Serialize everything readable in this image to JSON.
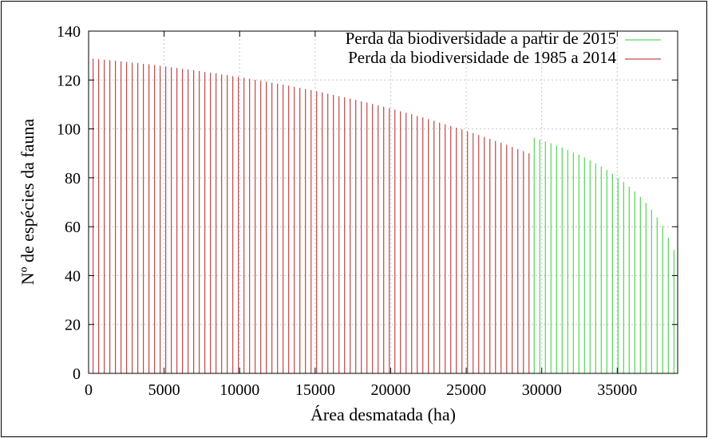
{
  "chart_data": {
    "type": "bar",
    "xlabel": "Área desmatada (ha)",
    "ylabel": "Nº de espécies da fauna",
    "xlim": [
      0,
      39000
    ],
    "ylim": [
      0,
      140
    ],
    "x_ticks": [
      "0",
      "5000",
      "10000",
      "15000",
      "20000",
      "25000",
      "30000",
      "35000"
    ],
    "y_ticks": [
      "0",
      "20",
      "40",
      "60",
      "80",
      "100",
      "120",
      "140"
    ],
    "grid": true,
    "legend_position": "top-right",
    "series": [
      {
        "name": "Perda da biodiversidade a partir de 2015",
        "color": "#33cc33",
        "points": [
          [
            29500,
            96.3
          ],
          [
            29870,
            95.6
          ],
          [
            30240,
            94.9
          ],
          [
            30610,
            94.1
          ],
          [
            30980,
            93.2
          ],
          [
            31350,
            92.4
          ],
          [
            31720,
            91.4
          ],
          [
            32090,
            90.4
          ],
          [
            32460,
            89.4
          ],
          [
            32830,
            88.3
          ],
          [
            33200,
            87.1
          ],
          [
            33570,
            85.9
          ],
          [
            33940,
            84.6
          ],
          [
            34310,
            83.2
          ],
          [
            34680,
            81.7
          ],
          [
            35050,
            80.0
          ],
          [
            35420,
            78.3
          ],
          [
            35790,
            76.4
          ],
          [
            36160,
            74.4
          ],
          [
            36530,
            72.2
          ],
          [
            36900,
            69.7
          ],
          [
            37270,
            67.0
          ],
          [
            37640,
            63.8
          ],
          [
            38010,
            60.2
          ],
          [
            38380,
            55.5
          ],
          [
            38750,
            50.5
          ]
        ]
      },
      {
        "name": "Perda da biodiversidade de 1985 a 2014",
        "color": "#b22222",
        "points": [
          [
            300,
            128.7
          ],
          [
            670,
            128.5
          ],
          [
            1040,
            128.3
          ],
          [
            1410,
            128.1
          ],
          [
            1780,
            127.9
          ],
          [
            2150,
            127.6
          ],
          [
            2520,
            127.4
          ],
          [
            2890,
            127.1
          ],
          [
            3260,
            126.9
          ],
          [
            3630,
            126.6
          ],
          [
            4000,
            126.4
          ],
          [
            4370,
            126.1
          ],
          [
            4740,
            125.8
          ],
          [
            5110,
            125.5
          ],
          [
            5480,
            125.2
          ],
          [
            5850,
            124.9
          ],
          [
            6220,
            124.6
          ],
          [
            6590,
            124.3
          ],
          [
            6960,
            124.0
          ],
          [
            7330,
            123.7
          ],
          [
            7700,
            123.3
          ],
          [
            8070,
            123.0
          ],
          [
            8440,
            122.7
          ],
          [
            8810,
            122.3
          ],
          [
            9180,
            122.0
          ],
          [
            9550,
            121.6
          ],
          [
            9920,
            121.3
          ],
          [
            10290,
            120.9
          ],
          [
            10660,
            120.5
          ],
          [
            11030,
            120.1
          ],
          [
            11400,
            119.7
          ],
          [
            11770,
            119.3
          ],
          [
            12140,
            118.9
          ],
          [
            12510,
            118.5
          ],
          [
            12880,
            118.1
          ],
          [
            13250,
            117.7
          ],
          [
            13620,
            117.2
          ],
          [
            13990,
            116.8
          ],
          [
            14360,
            116.3
          ],
          [
            14730,
            115.9
          ],
          [
            15100,
            115.4
          ],
          [
            15470,
            114.9
          ],
          [
            15840,
            114.4
          ],
          [
            16210,
            113.9
          ],
          [
            16580,
            113.4
          ],
          [
            16950,
            112.9
          ],
          [
            17320,
            112.4
          ],
          [
            17690,
            111.9
          ],
          [
            18060,
            111.3
          ],
          [
            18430,
            110.8
          ],
          [
            18800,
            110.2
          ],
          [
            19170,
            109.6
          ],
          [
            19540,
            109.1
          ],
          [
            19910,
            108.5
          ],
          [
            20280,
            107.9
          ],
          [
            20650,
            107.2
          ],
          [
            21020,
            106.6
          ],
          [
            21390,
            106.0
          ],
          [
            21760,
            105.3
          ],
          [
            22130,
            104.7
          ],
          [
            22500,
            104.0
          ],
          [
            22870,
            103.3
          ],
          [
            23240,
            102.6
          ],
          [
            23610,
            101.9
          ],
          [
            23980,
            101.2
          ],
          [
            24350,
            100.5
          ],
          [
            24720,
            99.8
          ],
          [
            25090,
            99.0
          ],
          [
            25460,
            98.3
          ],
          [
            25830,
            97.5
          ],
          [
            26200,
            96.7
          ],
          [
            26570,
            95.9
          ],
          [
            26940,
            95.1
          ],
          [
            27310,
            94.3
          ],
          [
            27680,
            93.5
          ],
          [
            28050,
            92.6
          ],
          [
            28420,
            91.8
          ],
          [
            28790,
            90.9
          ],
          [
            29160,
            90.0
          ]
        ]
      }
    ]
  }
}
